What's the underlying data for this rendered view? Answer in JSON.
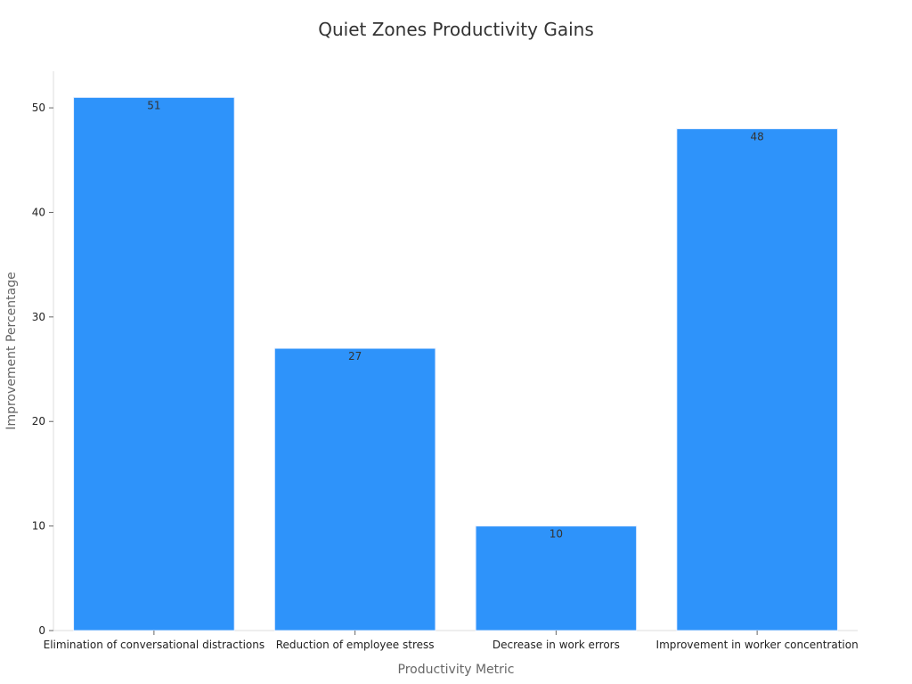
{
  "chart_data": {
    "type": "bar",
    "title": "Quiet Zones Productivity Gains",
    "xlabel": "Productivity Metric",
    "ylabel": "Improvement Percentage",
    "categories": [
      "Elimination of conversational distractions",
      "Reduction of employee stress",
      "Decrease in work errors",
      "Improvement in worker concentration"
    ],
    "values": [
      51,
      27,
      10,
      48
    ],
    "ylim": [
      0,
      53.5
    ],
    "yticks": [
      0,
      10,
      20,
      30,
      40,
      50
    ],
    "grid": false,
    "legend": "none",
    "bar_color": "#2e93fa",
    "show_data_labels": true
  }
}
